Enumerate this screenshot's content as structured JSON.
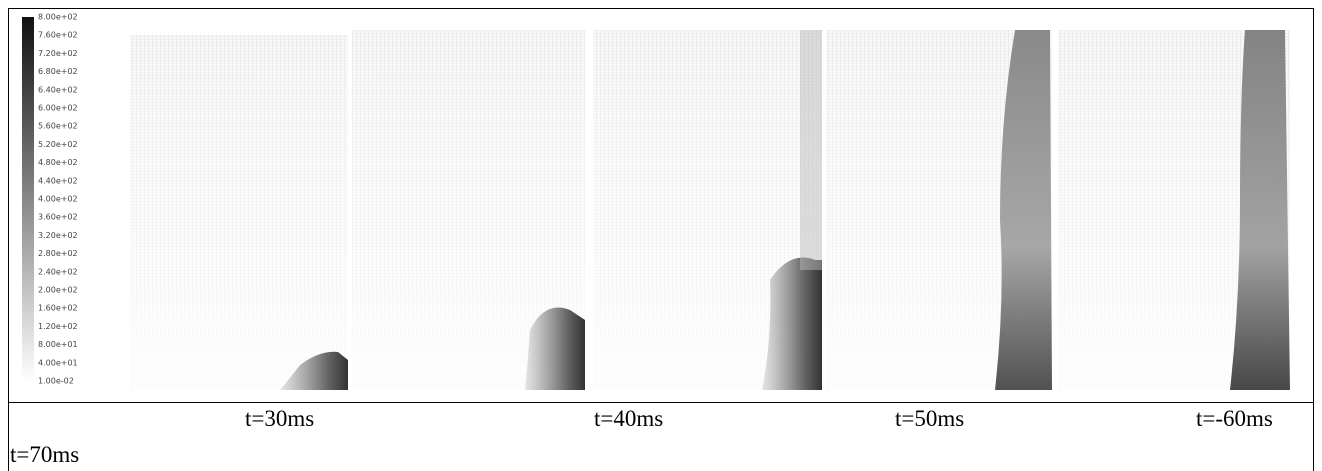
{
  "colorbar": {
    "labels": [
      "8.00e+02",
      "7.60e+02",
      "7.20e+02",
      "6.80e+02",
      "6.40e+02",
      "6.00e+02",
      "5.60e+02",
      "5.20e+02",
      "4.80e+02",
      "4.40e+02",
      "4.00e+02",
      "3.60e+02",
      "3.20e+02",
      "2.80e+02",
      "2.40e+02",
      "2.00e+02",
      "1.60e+02",
      "1.20e+02",
      "8.00e+01",
      "4.00e+01",
      "1.00e-02"
    ]
  },
  "captions": [
    "t=30ms",
    "t=40ms",
    "t=50ms",
    "t=-60ms",
    "t=70ms"
  ]
}
